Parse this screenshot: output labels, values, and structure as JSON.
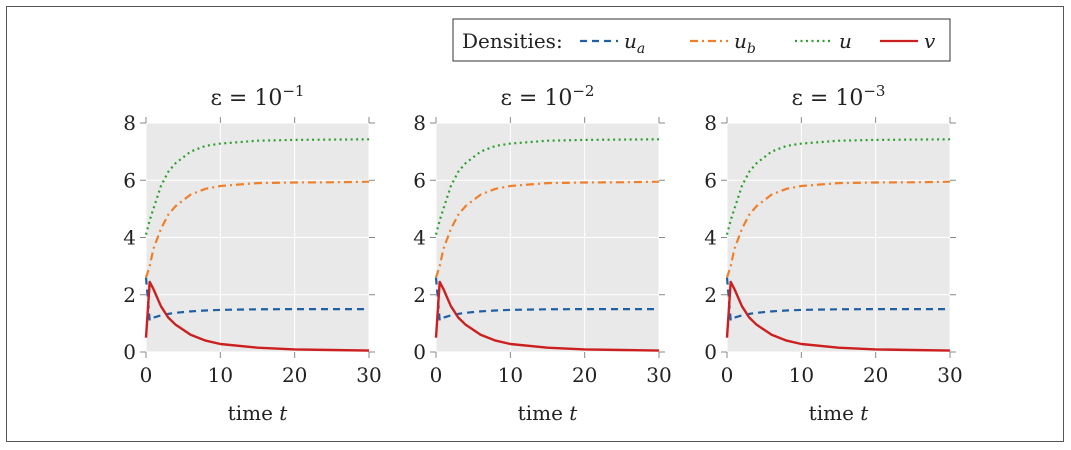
{
  "legend": {
    "title": "Densities:",
    "placement": "top-right",
    "entries": [
      {
        "label": "u",
        "sub": "a",
        "color": "#1f5fa6",
        "dash": "dashed"
      },
      {
        "label": "u",
        "sub": "b",
        "color": "#f07f2a",
        "dash": "dashdot"
      },
      {
        "label": "u",
        "sub": "",
        "color": "#2ca02c",
        "dash": "dotted"
      },
      {
        "label": "v",
        "sub": "",
        "color": "#cc2020",
        "dash": "solid"
      }
    ]
  },
  "chart_data": [
    {
      "type": "line",
      "title": "ε = 10",
      "title_exp": "−1",
      "xlabel": "time",
      "xlabel_var": "t",
      "xlim": [
        0,
        30
      ],
      "ylim": [
        0,
        8
      ],
      "xticks": [
        0,
        10,
        20,
        30
      ],
      "yticks": [
        0,
        2,
        4,
        6,
        8
      ],
      "grid": true,
      "series": [
        {
          "name": "u_a",
          "x": [
            0,
            0.5,
            1,
            2,
            3,
            4,
            6,
            8,
            10,
            15,
            20,
            25,
            30
          ],
          "y": [
            2.6,
            1.1,
            1.2,
            1.28,
            1.33,
            1.37,
            1.42,
            1.45,
            1.47,
            1.49,
            1.5,
            1.5,
            1.5
          ]
        },
        {
          "name": "u_b",
          "x": [
            0,
            0.5,
            1,
            2,
            3,
            4,
            6,
            8,
            10,
            15,
            20,
            25,
            30
          ],
          "y": [
            2.6,
            3.0,
            3.6,
            4.3,
            4.8,
            5.1,
            5.5,
            5.7,
            5.8,
            5.9,
            5.92,
            5.93,
            5.95
          ]
        },
        {
          "name": "u",
          "x": [
            0,
            0.5,
            1,
            2,
            3,
            4,
            6,
            8,
            10,
            15,
            20,
            25,
            30
          ],
          "y": [
            4.1,
            4.6,
            5.0,
            5.8,
            6.3,
            6.6,
            7.0,
            7.2,
            7.28,
            7.38,
            7.41,
            7.42,
            7.43
          ]
        },
        {
          "name": "v",
          "x": [
            0,
            0.5,
            1,
            2,
            3,
            4,
            6,
            8,
            10,
            15,
            20,
            25,
            30
          ],
          "y": [
            0.5,
            2.45,
            2.2,
            1.6,
            1.2,
            0.95,
            0.6,
            0.4,
            0.28,
            0.15,
            0.09,
            0.07,
            0.05
          ]
        }
      ]
    },
    {
      "type": "line",
      "title": "ε = 10",
      "title_exp": "−2",
      "xlabel": "time",
      "xlabel_var": "t",
      "xlim": [
        0,
        30
      ],
      "ylim": [
        0,
        8
      ],
      "xticks": [
        0,
        10,
        20,
        30
      ],
      "yticks": [
        0,
        2,
        4,
        6,
        8
      ],
      "grid": true,
      "series": [
        {
          "name": "u_a",
          "x": [
            0,
            0.5,
            1,
            2,
            3,
            4,
            6,
            8,
            10,
            15,
            20,
            25,
            30
          ],
          "y": [
            2.6,
            1.1,
            1.2,
            1.28,
            1.33,
            1.37,
            1.42,
            1.45,
            1.47,
            1.49,
            1.5,
            1.5,
            1.5
          ]
        },
        {
          "name": "u_b",
          "x": [
            0,
            0.5,
            1,
            2,
            3,
            4,
            6,
            8,
            10,
            15,
            20,
            25,
            30
          ],
          "y": [
            2.6,
            3.0,
            3.6,
            4.3,
            4.8,
            5.1,
            5.5,
            5.7,
            5.8,
            5.9,
            5.92,
            5.93,
            5.95
          ]
        },
        {
          "name": "u",
          "x": [
            0,
            0.5,
            1,
            2,
            3,
            4,
            6,
            8,
            10,
            15,
            20,
            25,
            30
          ],
          "y": [
            4.1,
            4.6,
            5.0,
            5.8,
            6.3,
            6.6,
            7.0,
            7.2,
            7.28,
            7.38,
            7.41,
            7.42,
            7.43
          ]
        },
        {
          "name": "v",
          "x": [
            0,
            0.5,
            1,
            2,
            3,
            4,
            6,
            8,
            10,
            15,
            20,
            25,
            30
          ],
          "y": [
            0.5,
            2.45,
            2.2,
            1.6,
            1.2,
            0.95,
            0.6,
            0.4,
            0.28,
            0.15,
            0.09,
            0.07,
            0.05
          ]
        }
      ]
    },
    {
      "type": "line",
      "title": "ε = 10",
      "title_exp": "−3",
      "xlabel": "time",
      "xlabel_var": "t",
      "xlim": [
        0,
        30
      ],
      "ylim": [
        0,
        8
      ],
      "xticks": [
        0,
        10,
        20,
        30
      ],
      "yticks": [
        0,
        2,
        4,
        6,
        8
      ],
      "grid": true,
      "series": [
        {
          "name": "u_a",
          "x": [
            0,
            0.5,
            1,
            2,
            3,
            4,
            6,
            8,
            10,
            15,
            20,
            25,
            30
          ],
          "y": [
            2.6,
            1.1,
            1.2,
            1.28,
            1.33,
            1.37,
            1.42,
            1.45,
            1.47,
            1.49,
            1.5,
            1.5,
            1.5
          ]
        },
        {
          "name": "u_b",
          "x": [
            0,
            0.5,
            1,
            2,
            3,
            4,
            6,
            8,
            10,
            15,
            20,
            25,
            30
          ],
          "y": [
            2.6,
            3.0,
            3.6,
            4.3,
            4.8,
            5.1,
            5.5,
            5.7,
            5.8,
            5.9,
            5.92,
            5.93,
            5.95
          ]
        },
        {
          "name": "u",
          "x": [
            0,
            0.5,
            1,
            2,
            3,
            4,
            6,
            8,
            10,
            15,
            20,
            25,
            30
          ],
          "y": [
            4.1,
            4.6,
            5.0,
            5.8,
            6.3,
            6.6,
            7.0,
            7.2,
            7.28,
            7.38,
            7.41,
            7.42,
            7.43
          ]
        },
        {
          "name": "v",
          "x": [
            0,
            0.5,
            1,
            2,
            3,
            4,
            6,
            8,
            10,
            15,
            20,
            25,
            30
          ],
          "y": [
            0.5,
            2.45,
            2.2,
            1.6,
            1.2,
            0.95,
            0.6,
            0.4,
            0.28,
            0.15,
            0.09,
            0.07,
            0.05
          ]
        }
      ]
    }
  ]
}
